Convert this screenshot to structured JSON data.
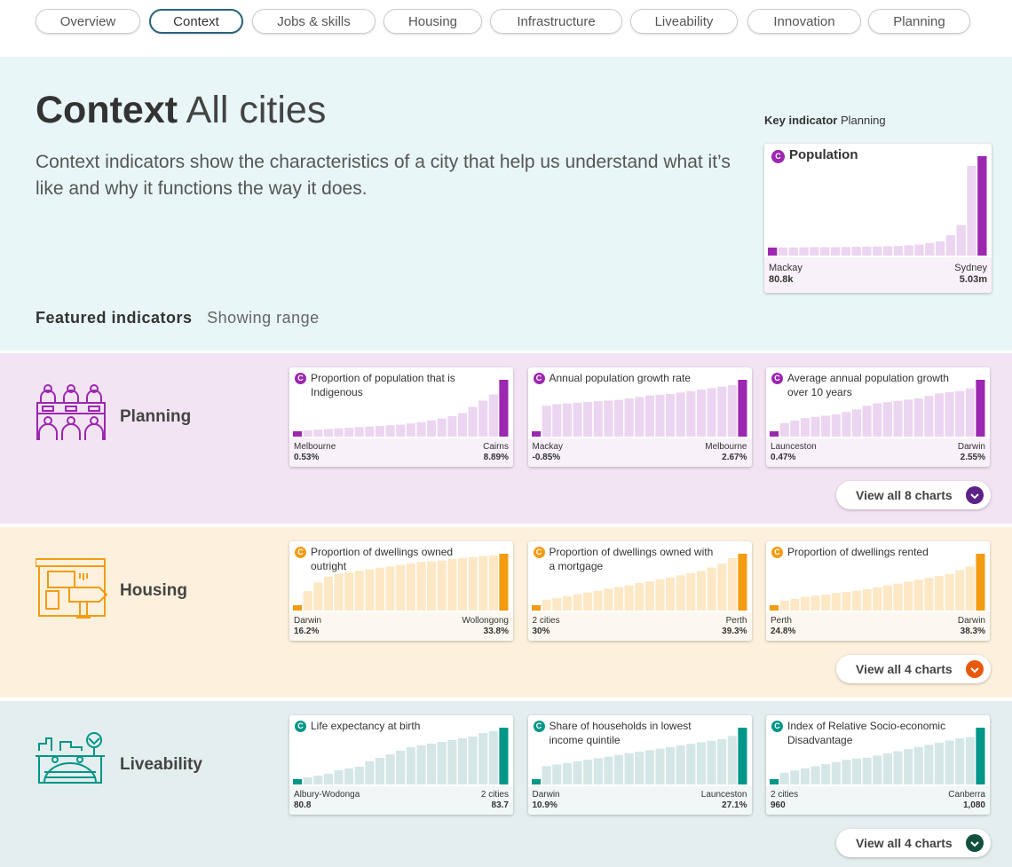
{
  "nav": [
    "Overview",
    "Context",
    "Jobs & skills",
    "Housing",
    "Infrastructure",
    "Liveability",
    "Innovation",
    "Planning"
  ],
  "nav_active": 1,
  "hero": {
    "title_bold": "Context",
    "title_rest": "All cities",
    "description": "Context indicators show the characteristics of a city that help us understand what it’s like and why it functions the way it does.",
    "key_label": "Key indicator",
    "key_section": "Planning",
    "key_card": {
      "badge": "C",
      "title": "Population",
      "values": [
        80800,
        85000,
        90000,
        95000,
        100000,
        105000,
        110000,
        115000,
        120000,
        130000,
        140000,
        150000,
        170000,
        200000,
        250000,
        330000,
        420000,
        750000,
        1300000,
        4500000,
        5030000
      ],
      "min": {
        "city": "Mackay",
        "label": "80.8k"
      },
      "max": {
        "city": "Sydney",
        "label": "5.03m"
      }
    }
  },
  "featured": {
    "title": "Featured indicators",
    "subtitle": "Showing range"
  },
  "sections": [
    {
      "name": "Planning",
      "bg": "#f3e4f4",
      "color": "#9c27b0",
      "light": "#ecd5f0",
      "foot": "#f8f1f9",
      "btn_color": "#5b2387",
      "button": "View all 8 charts",
      "cards": [
        {
          "badge": "C",
          "title": "Proportion of population that is Indigenous",
          "values": [
            0.53,
            0.7,
            0.8,
            0.9,
            1.0,
            1.1,
            1.2,
            1.3,
            1.4,
            1.5,
            1.6,
            1.8,
            2.0,
            2.3,
            2.6,
            3.0,
            3.5,
            4.5,
            5.5,
            6.5,
            8.89
          ],
          "min": {
            "city": "Melbourne",
            "label": "0.53%"
          },
          "max": {
            "city": "Cairns",
            "label": "8.89%"
          }
        },
        {
          "badge": "C",
          "title": "Annual population growth rate",
          "values": [
            -0.85,
            0.9,
            1.0,
            1.05,
            1.1,
            1.15,
            1.2,
            1.25,
            1.3,
            1.4,
            1.5,
            1.6,
            1.65,
            1.7,
            1.8,
            1.9,
            2.0,
            2.1,
            2.2,
            2.3,
            2.67
          ],
          "min": {
            "city": "Mackay",
            "label": "-0.85%"
          },
          "max": {
            "city": "Melbourne",
            "label": "2.67%"
          }
        },
        {
          "badge": "C",
          "title": "Average annual population growth over 10 years",
          "values": [
            0.47,
            0.8,
            0.9,
            1.0,
            1.05,
            1.1,
            1.15,
            1.25,
            1.35,
            1.5,
            1.6,
            1.65,
            1.7,
            1.75,
            1.8,
            1.9,
            2.0,
            2.05,
            2.1,
            2.2,
            2.55
          ],
          "min": {
            "city": "Launceston",
            "label": "0.47%"
          },
          "max": {
            "city": "Darwin",
            "label": "2.55%"
          }
        }
      ]
    },
    {
      "name": "Housing",
      "bg": "#fdf1dd",
      "color": "#f39c12",
      "light": "#fde8c6",
      "foot": "#fcf8f1",
      "btn_color": "#e8590c",
      "button": "View all 4 charts",
      "cards": [
        {
          "badge": "C",
          "title": "Proportion of dwellings owned outright",
          "values": [
            16.2,
            21,
            24,
            26,
            27,
            27.5,
            28,
            28.5,
            29,
            29.5,
            30,
            30.5,
            31,
            31.2,
            31.5,
            32,
            32.3,
            32.6,
            33,
            33.3,
            33.8
          ],
          "min": {
            "city": "Darwin",
            "label": "16.2%"
          },
          "max": {
            "city": "Wollongong",
            "label": "33.8%"
          }
        },
        {
          "badge": "C",
          "title": "Proportion of dwellings owned with a mortgage",
          "values": [
            30,
            31,
            31.3,
            31.6,
            32,
            32.3,
            32.6,
            33,
            33.3,
            33.6,
            34,
            34.3,
            34.7,
            35,
            35.4,
            35.8,
            36.2,
            36.8,
            37.5,
            38.5,
            39.3
          ],
          "min": {
            "city": "2 cities",
            "label": "30%"
          },
          "max": {
            "city": "Perth",
            "label": "39.3%"
          }
        },
        {
          "badge": "C",
          "title": "Proportion of dwellings rented",
          "values": [
            24.8,
            26,
            26.5,
            27,
            27.3,
            27.6,
            28,
            28.3,
            28.6,
            29,
            29.5,
            30,
            30.5,
            31,
            31.5,
            32,
            32.5,
            33,
            34,
            35,
            38.3
          ],
          "min": {
            "city": "Perth",
            "label": "24.8%"
          },
          "max": {
            "city": "Darwin",
            "label": "38.3%"
          }
        }
      ]
    },
    {
      "name": "Liveability",
      "bg": "#e4eeee",
      "color": "#009688",
      "light": "#d5e6e6",
      "foot": "#f1f6f6",
      "btn_color": "#14503f",
      "button": "View all 4 charts",
      "cards": [
        {
          "badge": "C",
          "title": "Life expectancy at birth",
          "values": [
            80.8,
            80.9,
            81,
            81.1,
            81.3,
            81.4,
            81.5,
            81.8,
            82,
            82.2,
            82.4,
            82.6,
            82.7,
            82.8,
            82.9,
            83,
            83.1,
            83.2,
            83.4,
            83.5,
            83.7
          ],
          "min": {
            "city": "Albury-Wodonga",
            "label": "80.8"
          },
          "max": {
            "city": "2 cities",
            "label": "83.7"
          }
        },
        {
          "badge": "C",
          "title": "Share of households in lowest income quintile",
          "values": [
            10.9,
            15,
            15.5,
            16,
            16.5,
            17,
            17.5,
            18,
            18.5,
            19,
            19.5,
            20,
            20.5,
            21,
            21.5,
            22,
            22.5,
            23,
            23.5,
            24.5,
            27.1
          ],
          "min": {
            "city": "Darwin",
            "label": "10.9%"
          },
          "max": {
            "city": "Launceston",
            "label": "27.1%"
          }
        },
        {
          "badge": "C",
          "title": "Index of Relative Socio-economic Disadvantage",
          "values": [
            960,
            975,
            980,
            985,
            990,
            995,
            1000,
            1005,
            1008,
            1010,
            1015,
            1020,
            1025,
            1030,
            1035,
            1040,
            1045,
            1050,
            1055,
            1058,
            1080
          ],
          "min": {
            "city": "2 cities",
            "label": "960"
          },
          "max": {
            "city": "Canberra",
            "label": "1,080"
          }
        }
      ]
    }
  ]
}
